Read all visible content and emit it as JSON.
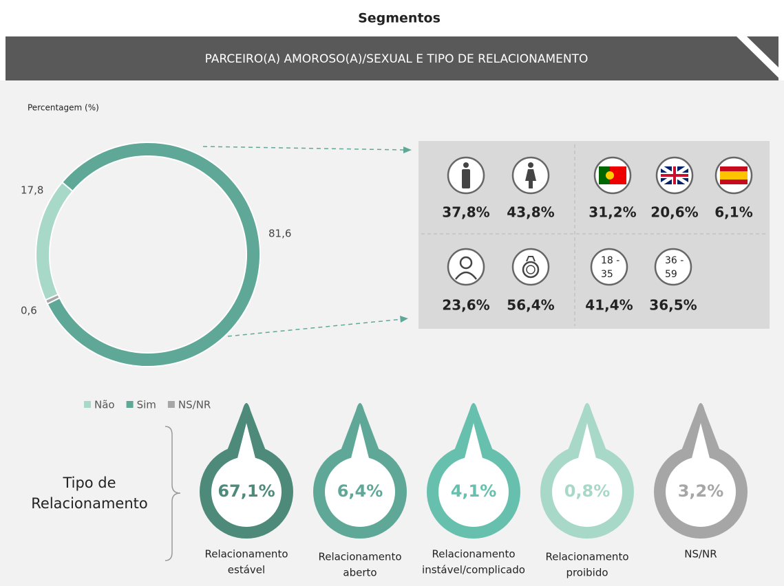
{
  "title": "Segmentos",
  "header": "PARCEIRO(A) AMOROSO(A)/SEXUAL E TIPO DE RELACIONAMENTO",
  "chart_data": {
    "type": "donut",
    "y_label": "Percentagem (%)",
    "categories": [
      "Não",
      "Sim",
      "NS/NR"
    ],
    "values": [
      17.8,
      81.6,
      0.6
    ],
    "value_labels": [
      "17,8",
      "81,6",
      "0,6"
    ],
    "colors": [
      "#a8d8c8",
      "#5fa898",
      "#a6a6a6"
    ],
    "legend": "bottom-left"
  },
  "segments": {
    "rows": [
      [
        "37,8%",
        "43,8%",
        "31,2%",
        "20,6%",
        "6,1%"
      ],
      [
        "23,6%",
        "56,4%",
        "41,4%",
        "36,5%"
      ]
    ],
    "age_groups": [
      [
        "18 -",
        "35"
      ],
      [
        "36 -",
        "59"
      ]
    ]
  },
  "relationship": {
    "title_lines": [
      "Tipo de",
      "Relacionamento"
    ],
    "items": [
      {
        "value": "67,1%",
        "label": [
          "Relacionamento",
          "estável"
        ],
        "color": "#4e8a7a"
      },
      {
        "value": "6,4%",
        "label": [
          "Relacionamento",
          "aberto"
        ],
        "color": "#5fa898"
      },
      {
        "value": "4,1%",
        "label": [
          "Relacionamento",
          "instável/complicado"
        ],
        "color": "#66c0ad"
      },
      {
        "value": "0,8%",
        "label": [
          "Relacionamento",
          "proibido"
        ],
        "color": "#a8d8c8"
      },
      {
        "value": "3,2%",
        "label": [
          "NS/NR"
        ],
        "color": "#a6a6a6"
      }
    ]
  }
}
